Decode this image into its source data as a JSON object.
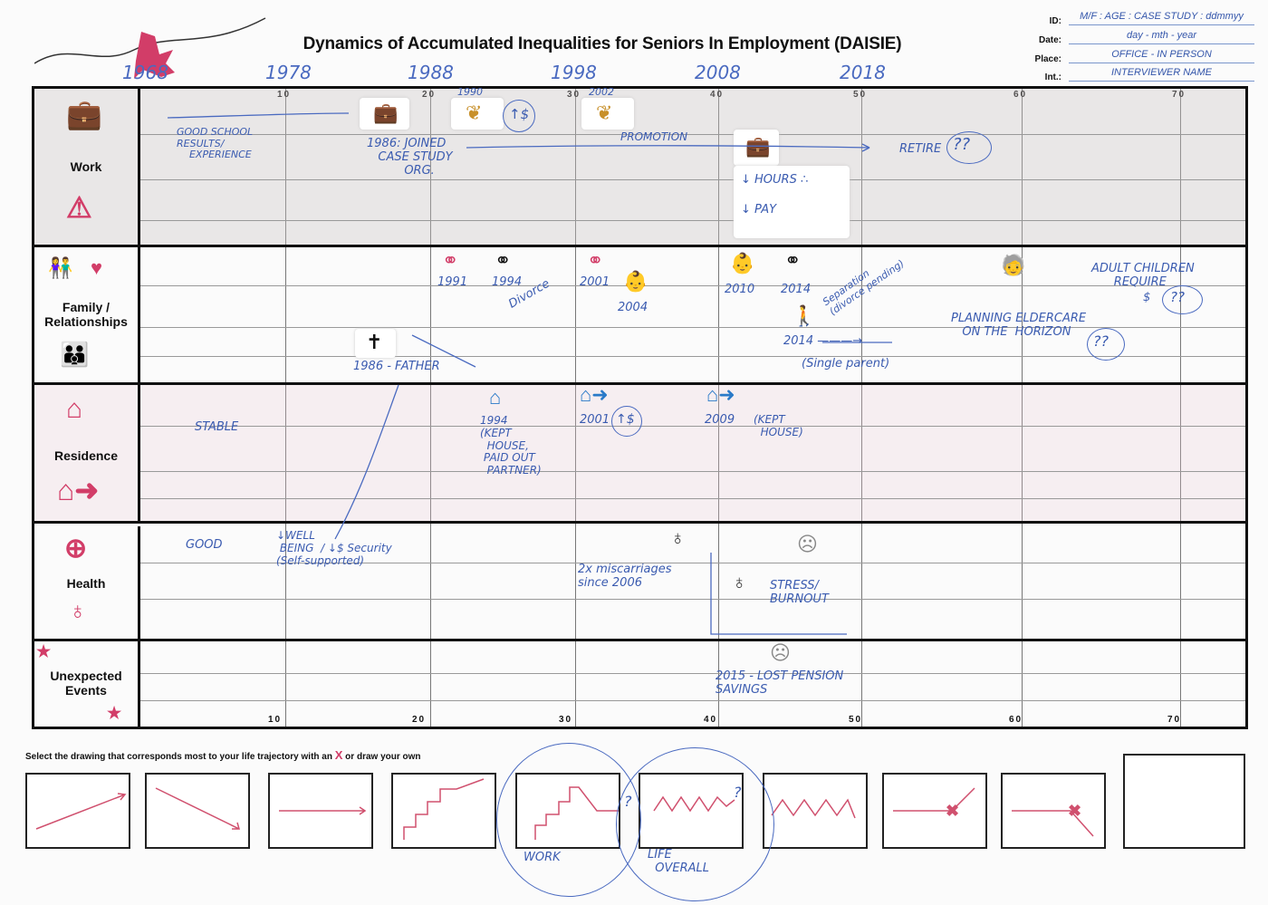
{
  "title": "Dynamics of Accumulated Inequalities for Seniors In Employment (DAISIE)",
  "info": {
    "id_label": "ID:",
    "id_value": "M/F : AGE : CASE STUDY : ddmmyy",
    "date_label": "Date:",
    "date_value": "day - mth - year",
    "place_label": "Place:",
    "place_value": "OFFICE - IN PERSON",
    "int_label": "Int.:",
    "int_value": "INTERVIEWER NAME"
  },
  "years": [
    "1968",
    "1978",
    "1988",
    "1998",
    "2008",
    "2018"
  ],
  "ages": [
    "10",
    "20",
    "30",
    "40",
    "50",
    "60",
    "70"
  ],
  "rows": {
    "work": "Work",
    "family": "Family / Relationships",
    "residence": "Residence",
    "health": "Health",
    "unexpected": "Unexpected Events"
  },
  "work": {
    "small_year_1": "1990",
    "small_year_2": "2002",
    "pay_up": "↑$",
    "school": "GOOD SCHOOL\nRESULTS/\n    EXPERIENCE",
    "joined": "1986: JOINED\n   CASE STUDY\n          ORG.",
    "promotion": "PROMOTION",
    "retire": "RETIRE",
    "retire_q": "??",
    "hours": "↓ HOURS ∴",
    "pay": "↓ PAY"
  },
  "family": {
    "y1991": "1991",
    "y1994": "1994",
    "divorce": "Divorce",
    "y2001": "2001",
    "y2004": "2004",
    "y2010": "2010",
    "y2014": "2014",
    "separation": "Separation\n(divorce pending)",
    "single": "2014 ———→",
    "single_parent": "(Single parent)",
    "father": "1986 - FATHER",
    "eldercare": "PLANNING ELDERCARE\n   ON THE  HORIZON",
    "eldercare_q": "??",
    "adult": "ADULT CHILDREN\n      REQUIRE",
    "adult_money": "$",
    "adult_q": "??"
  },
  "residence": {
    "stable": "STABLE",
    "y1994": "1994\n(KEPT\n  HOUSE,\n PAID OUT\n  PARTNER)",
    "y2001": "2001",
    "pay_up": "↑$",
    "y2009": "2009",
    "kept": "(KEPT\n  HOUSE)"
  },
  "health": {
    "good": "GOOD",
    "wellbeing": "↓WELL\n BEING  / ↓$ Security\n(Self-supported)",
    "miscarriages": "2x miscarriages\nsince 2006",
    "stress": "STRESS/\nBURNOUT"
  },
  "unexpected": {
    "pension": "2015 - LOST PENSION\nSAVINGS"
  },
  "instruction": {
    "text": "Select the drawing that corresponds most to your life trajectory with an ",
    "mark": "X",
    "suffix": " or draw your own"
  },
  "trajectory_notes": {
    "work": "WORK",
    "life": "LIFE\n  OVERALL",
    "q": "?"
  },
  "colors": {
    "accent": "#d23d68",
    "ink": "#3a5bb0"
  }
}
